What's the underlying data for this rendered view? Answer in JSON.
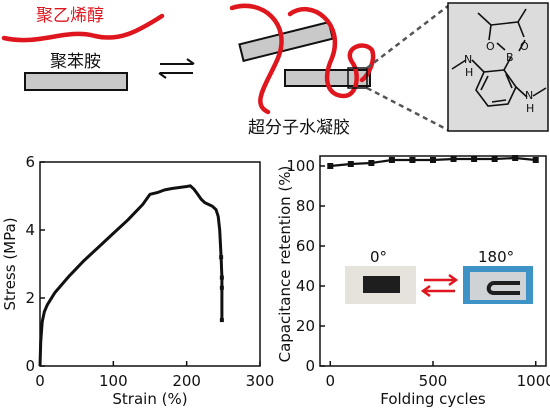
{
  "schematic": {
    "pva_label": "聚乙烯醇",
    "pani_label": "聚苯胺",
    "hydrogel_label": "超分子水凝胶",
    "crosslinker_labels": [
      "B",
      "O",
      "O",
      "N",
      "H",
      "N",
      "H"
    ],
    "colors": {
      "pva_strand": "#e0161e",
      "rod_fill": "#c9c9c9",
      "inset_bg": "#dcdcdc"
    }
  },
  "chart_data": [
    {
      "type": "line",
      "title": "",
      "xlabel": "Strain (%)",
      "ylabel": "Stress (MPa)",
      "xlim": [
        0,
        300
      ],
      "ylim": [
        0,
        6
      ],
      "xticks": [
        0,
        100,
        200,
        300
      ],
      "yticks": [
        0,
        2,
        4,
        6
      ],
      "grid": false,
      "series": [
        {
          "x": [
            0,
            1,
            3,
            6,
            10,
            20,
            40,
            60,
            80,
            100,
            120,
            140,
            150,
            160,
            170,
            180,
            190,
            200,
            205,
            210,
            215,
            220,
            225,
            230,
            235,
            240,
            243,
            245,
            247,
            248,
            248,
            248
          ],
          "y": [
            0,
            0.7,
            1.3,
            1.6,
            1.8,
            2.15,
            2.65,
            3.1,
            3.5,
            3.9,
            4.3,
            4.75,
            5.05,
            5.1,
            5.18,
            5.22,
            5.25,
            5.28,
            5.3,
            5.2,
            5.05,
            4.9,
            4.8,
            4.75,
            4.7,
            4.6,
            4.4,
            4.0,
            3.2,
            2.6,
            2.3,
            1.35
          ]
        }
      ]
    },
    {
      "type": "line",
      "title": "",
      "xlabel": "Folding cycles",
      "ylabel": "Capacitance retention (%)",
      "xlim": [
        -50,
        1050
      ],
      "ylim": [
        0,
        105
      ],
      "xticks": [
        0,
        500,
        1000
      ],
      "yticks": [
        0,
        20,
        40,
        60,
        80,
        100
      ],
      "grid": false,
      "series": [
        {
          "x": [
            0,
            100,
            200,
            300,
            400,
            500,
            600,
            700,
            800,
            900,
            1000
          ],
          "y": [
            100,
            101,
            101.5,
            103,
            103,
            103,
            103.5,
            103.5,
            103.5,
            104,
            103
          ]
        }
      ],
      "annotations": [
        "0°",
        "180°"
      ]
    }
  ]
}
